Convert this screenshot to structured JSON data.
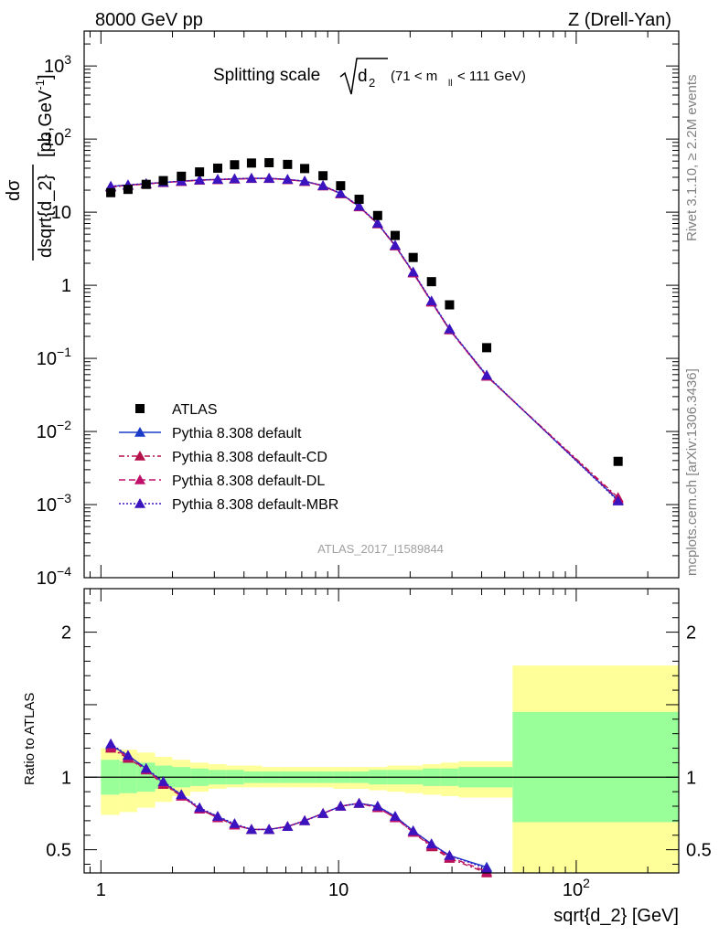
{
  "header": {
    "left": "8000 GeV pp",
    "right": "Z (Drell-Yan)"
  },
  "side_labels": {
    "rivet": "Rivet 3.1.10, ≥ 2.2M events",
    "mcplots": "mcplots.cern.ch [arXiv:1306.3436]"
  },
  "plot_title": {
    "main": "Splitting scale",
    "sub": "d",
    "sub_index": "2",
    "range_pre": "(71 < m",
    "range_sub": "ll",
    "range_post": " < 111 GeV)"
  },
  "analysis_id": "ATLAS_2017_I1589844",
  "top_ylabel": {
    "num": "dσ",
    "den": "dsqrt{d_2}",
    "unit_pre": "[pb,GeV",
    "unit_sup": "-1",
    "unit_post": "]"
  },
  "bottom_ylabel": "Ratio to ATLAS",
  "xlabel": "sqrt{d_2} [GeV]",
  "x_tick_labels": [
    {
      "value": 1,
      "label": "1"
    },
    {
      "value": 10,
      "label": "10"
    },
    {
      "value": 100,
      "label": "10",
      "sup": "2"
    }
  ],
  "top_tick_labels": [
    {
      "value": 1000,
      "label": "10",
      "sup": "3"
    },
    {
      "value": 100,
      "label": "10",
      "sup": "2"
    },
    {
      "value": 10,
      "label": "10"
    },
    {
      "value": 1,
      "label": "1"
    },
    {
      "value": 0.1,
      "label": "10",
      "sup": "−1"
    },
    {
      "value": 0.01,
      "label": "10",
      "sup": "−2"
    },
    {
      "value": 0.001,
      "label": "10",
      "sup": "−3"
    },
    {
      "value": 0.0001,
      "label": "10",
      "sup": "−4"
    }
  ],
  "ratio_tick_labels": [
    {
      "value": 2,
      "label": "2"
    },
    {
      "value": 1,
      "label": "1"
    },
    {
      "value": 0.5,
      "label": "0.5"
    }
  ],
  "legend": [
    {
      "label": "ATLAS",
      "key": "data"
    },
    {
      "label": "Pythia 8.308 default",
      "key": "default"
    },
    {
      "label": "Pythia 8.308 default-CD",
      "key": "cd"
    },
    {
      "label": "Pythia 8.308 default-DL",
      "key": "dl"
    },
    {
      "label": "Pythia 8.308 default-MBR",
      "key": "mbr"
    }
  ],
  "colors": {
    "data": "#000000",
    "default": "#1a3cc8",
    "cd": "#b4104a",
    "dl": "#c0106a",
    "mbr": "#3b14c0",
    "band_outer": "#ffff99",
    "band_inner": "#99ff99"
  },
  "chart_data": {
    "type": "line",
    "xscale": "log",
    "xlim": [
      0.85,
      270
    ],
    "top": {
      "yscale": "log",
      "ylim": [
        0.0001,
        3000
      ],
      "data": {
        "name": "ATLAS",
        "x": [
          1.1,
          1.3,
          1.55,
          1.83,
          2.18,
          2.6,
          3.1,
          3.65,
          4.3,
          5.1,
          6.1,
          7.2,
          8.6,
          10.2,
          12.2,
          14.6,
          17.3,
          20.6,
          24.6,
          29.3,
          42,
          150
        ],
        "y": [
          18.5,
          20.5,
          24,
          27,
          31,
          35.5,
          40,
          44.5,
          47,
          47.5,
          45,
          39.5,
          31.5,
          23,
          15,
          9,
          4.8,
          2.4,
          1.12,
          0.54,
          0.14,
          0.0039
        ]
      },
      "series": [
        {
          "name": "Pythia 8.308 default",
          "key": "default",
          "x": [
            1.1,
            1.3,
            1.55,
            1.83,
            2.18,
            2.6,
            3.1,
            3.65,
            4.3,
            5.1,
            6.1,
            7.2,
            8.6,
            10.2,
            12.2,
            14.6,
            17.3,
            20.6,
            24.6,
            29.3,
            42,
            150
          ],
          "y": [
            22.5,
            23.5,
            24.5,
            25.5,
            26.5,
            27.5,
            28,
            28.5,
            29,
            29,
            28,
            26.5,
            23,
            18,
            12,
            7,
            3.5,
            1.5,
            0.6,
            0.25,
            0.058,
            0.00115
          ]
        },
        {
          "name": "Pythia 8.308 default-CD",
          "key": "cd",
          "x": [
            1.1,
            1.3,
            1.55,
            1.83,
            2.18,
            2.6,
            3.1,
            3.65,
            4.3,
            5.1,
            6.1,
            7.2,
            8.6,
            10.2,
            12.2,
            14.6,
            17.3,
            20.6,
            24.6,
            29.3,
            42,
            150
          ],
          "y": [
            22.0,
            23.2,
            24.3,
            25.3,
            26.3,
            27.3,
            27.8,
            28.3,
            28.8,
            28.8,
            27.8,
            26.3,
            22.8,
            17.8,
            11.8,
            6.9,
            3.45,
            1.47,
            0.59,
            0.245,
            0.057,
            0.00125
          ]
        },
        {
          "name": "Pythia 8.308 default-DL",
          "key": "dl",
          "x": [
            1.1,
            1.3,
            1.55,
            1.83,
            2.18,
            2.6,
            3.1,
            3.65,
            4.3,
            5.1,
            6.1,
            7.2,
            8.6,
            10.2,
            12.2,
            14.6,
            17.3,
            20.6,
            24.6,
            29.3,
            42,
            150
          ],
          "y": [
            22.2,
            23.3,
            24.4,
            25.4,
            26.4,
            27.4,
            27.9,
            28.4,
            28.9,
            28.9,
            27.9,
            26.4,
            22.9,
            17.9,
            11.9,
            6.95,
            3.47,
            1.48,
            0.59,
            0.247,
            0.057,
            0.0012
          ]
        },
        {
          "name": "Pythia 8.308 default-MBR",
          "key": "mbr",
          "x": [
            1.1,
            1.3,
            1.55,
            1.83,
            2.18,
            2.6,
            3.1,
            3.65,
            4.3,
            5.1,
            6.1,
            7.2,
            8.6,
            10.2,
            12.2,
            14.6,
            17.3,
            20.6,
            24.6,
            29.3,
            42,
            150
          ],
          "y": [
            22.6,
            23.6,
            24.6,
            25.6,
            26.6,
            27.6,
            28.1,
            28.6,
            29.1,
            29.1,
            28.1,
            26.6,
            23.1,
            18.1,
            12.1,
            7.05,
            3.52,
            1.52,
            0.61,
            0.252,
            0.059,
            0.00112
          ]
        }
      ]
    },
    "ratio": {
      "ylim": [
        0.34,
        2.3
      ],
      "bands": {
        "edges": [
          1.0,
          1.2,
          1.42,
          1.69,
          2.0,
          2.38,
          2.84,
          3.37,
          4.0,
          4.76,
          5.66,
          6.73,
          8.0,
          9.5,
          11.3,
          13.4,
          16.0,
          19.0,
          22.6,
          26.9,
          32.0,
          54.0,
          270.0
        ],
        "outer_lo": [
          0.74,
          0.76,
          0.79,
          0.83,
          0.87,
          0.9,
          0.92,
          0.93,
          0.93,
          0.93,
          0.93,
          0.93,
          0.93,
          0.92,
          0.92,
          0.91,
          0.9,
          0.89,
          0.88,
          0.87,
          0.86,
          0.34
        ],
        "outer_hi": [
          1.2,
          1.19,
          1.17,
          1.14,
          1.12,
          1.1,
          1.09,
          1.08,
          1.08,
          1.07,
          1.07,
          1.07,
          1.07,
          1.07,
          1.07,
          1.07,
          1.08,
          1.08,
          1.09,
          1.1,
          1.11,
          1.77
        ],
        "inner_lo": [
          0.88,
          0.89,
          0.9,
          0.92,
          0.93,
          0.94,
          0.95,
          0.95,
          0.96,
          0.96,
          0.96,
          0.96,
          0.96,
          0.96,
          0.96,
          0.95,
          0.95,
          0.95,
          0.94,
          0.94,
          0.93,
          0.69
        ],
        "inner_hi": [
          1.12,
          1.11,
          1.1,
          1.08,
          1.07,
          1.06,
          1.05,
          1.05,
          1.04,
          1.04,
          1.04,
          1.04,
          1.04,
          1.04,
          1.04,
          1.05,
          1.05,
          1.05,
          1.06,
          1.06,
          1.07,
          1.45
        ]
      },
      "series": [
        {
          "name": "Pythia 8.308 default",
          "key": "default",
          "x": [
            1.1,
            1.3,
            1.55,
            1.83,
            2.18,
            2.6,
            3.1,
            3.65,
            4.3,
            5.1,
            6.1,
            7.2,
            8.6,
            10.2,
            12.2,
            14.6,
            17.3,
            20.6,
            24.6,
            29.3,
            42
          ],
          "y": [
            1.22,
            1.15,
            1.06,
            0.96,
            0.88,
            0.78,
            0.73,
            0.67,
            0.64,
            0.64,
            0.66,
            0.7,
            0.75,
            0.8,
            0.82,
            0.8,
            0.73,
            0.63,
            0.54,
            0.46,
            0.38
          ]
        },
        {
          "name": "Pythia 8.308 default-CD",
          "key": "cd",
          "x": [
            1.1,
            1.3,
            1.55,
            1.83,
            2.18,
            2.6,
            3.1,
            3.65,
            4.3,
            5.1,
            6.1,
            7.2,
            8.6,
            10.2,
            12.2,
            14.6,
            17.3,
            20.6,
            24.6,
            29.3,
            42
          ],
          "y": [
            1.2,
            1.13,
            1.05,
            0.95,
            0.87,
            0.78,
            0.72,
            0.67,
            0.64,
            0.64,
            0.66,
            0.7,
            0.75,
            0.8,
            0.82,
            0.79,
            0.72,
            0.62,
            0.52,
            0.44,
            0.34
          ]
        },
        {
          "name": "Pythia 8.308 default-DL",
          "key": "dl",
          "x": [
            1.1,
            1.3,
            1.55,
            1.83,
            2.18,
            2.6,
            3.1,
            3.65,
            4.3,
            5.1,
            6.1,
            7.2,
            8.6,
            10.2,
            12.2,
            14.6,
            17.3,
            20.6,
            24.6,
            29.3,
            42
          ],
          "y": [
            1.21,
            1.14,
            1.05,
            0.96,
            0.87,
            0.78,
            0.72,
            0.67,
            0.64,
            0.64,
            0.66,
            0.7,
            0.75,
            0.8,
            0.82,
            0.79,
            0.72,
            0.62,
            0.53,
            0.45,
            0.35
          ]
        },
        {
          "name": "Pythia 8.308 default-MBR",
          "key": "mbr",
          "x": [
            1.1,
            1.3,
            1.55,
            1.83,
            2.18,
            2.6,
            3.1,
            3.65,
            4.3,
            5.1,
            6.1,
            7.2,
            8.6,
            10.2,
            12.2,
            14.6,
            17.3,
            20.6,
            24.6,
            29.3,
            42
          ],
          "y": [
            1.23,
            1.15,
            1.06,
            0.97,
            0.88,
            0.79,
            0.73,
            0.68,
            0.64,
            0.64,
            0.66,
            0.7,
            0.75,
            0.8,
            0.82,
            0.8,
            0.73,
            0.63,
            0.54,
            0.46,
            0.37
          ]
        }
      ]
    }
  }
}
